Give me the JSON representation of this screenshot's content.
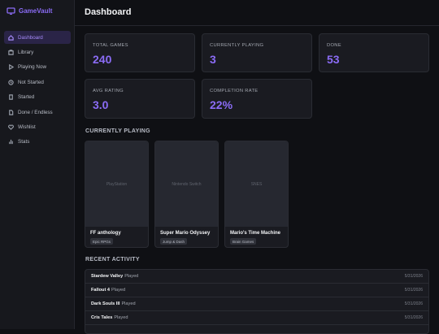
{
  "sidebar": {
    "brand": "GameVault",
    "nav": [
      "Dashboard",
      "Library",
      "Playing Now",
      "Not Started",
      "Started",
      "Done / Endless",
      "Wishlist",
      "Stats"
    ]
  },
  "header": {
    "title": "Dashboard"
  },
  "stats": [
    {
      "label": "TOTAL GAMES",
      "value": "240"
    },
    {
      "label": "CURRENTLY PLAYING",
      "value": "3"
    },
    {
      "label": "DONE",
      "value": "53"
    },
    {
      "label": "AVG RATING",
      "value": "3.0"
    },
    {
      "label": "COMPLETION RATE",
      "value": "22%"
    }
  ],
  "currently_playing": {
    "heading": "CURRENTLY PLAYING",
    "games": [
      {
        "platform": "PlayStation",
        "title": "FF anthology",
        "tag": "Epic RPGs"
      },
      {
        "platform": "Nintendo Switch",
        "title": "Super Mario Odyssey",
        "tag": "Jump & Dash"
      },
      {
        "platform": "SNES",
        "title": "Mario's Time Machine",
        "tag": "Brain Games"
      }
    ]
  },
  "recent_activity": {
    "heading": "RECENT ACTIVITY",
    "items": [
      {
        "game": "Stardew Valley",
        "action": "Played",
        "date": "5/31/2026"
      },
      {
        "game": "Fallout 4",
        "action": "Played",
        "date": "5/31/2026"
      },
      {
        "game": "Dark Souls III",
        "action": "Played",
        "date": "5/31/2026"
      },
      {
        "game": "Cris Tales",
        "action": "Played",
        "date": "5/31/2026"
      }
    ]
  }
}
